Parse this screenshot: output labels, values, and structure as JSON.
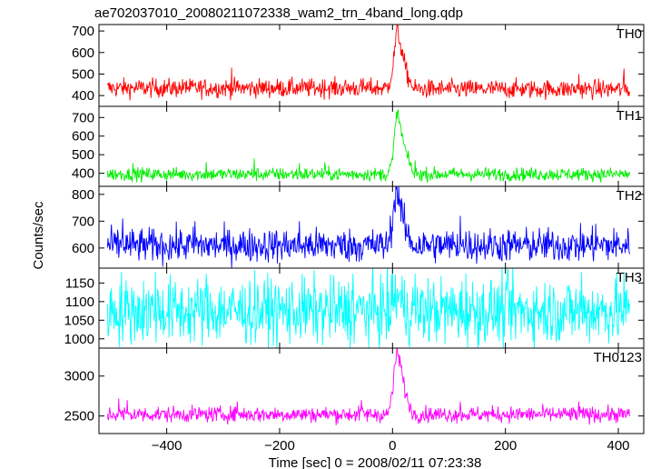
{
  "chart_data": {
    "type": "line",
    "title": "ae702037010_20080211072338_wam2_trn_4band_long.qdp",
    "xlabel": "Time [sec] 0 = 2008/02/11 07:23:38",
    "ylabel": "Counts/sec",
    "xlim": [
      -520,
      445
    ],
    "xticks": [
      -400,
      -200,
      0,
      200,
      400
    ],
    "x_range": [
      -505,
      420
    ],
    "x_step": 1,
    "burst_peak_x": 8,
    "panels": [
      {
        "name": "TH0",
        "color": "#ff0000",
        "ylim": [
          350,
          730
        ],
        "yticks": [
          400,
          500,
          600,
          700
        ],
        "baseline": 430,
        "noise": 22,
        "pre_burst_baseline": 435,
        "burst": [
          [
            -8,
            440
          ],
          [
            0,
            520
          ],
          [
            4,
            620
          ],
          [
            8,
            710
          ],
          [
            14,
            640
          ],
          [
            20,
            560
          ],
          [
            28,
            480
          ],
          [
            36,
            450
          ]
        ],
        "spikes": [
          [
            -120,
            475
          ],
          [
            -55,
            470
          ],
          [
            -365,
            470
          ],
          [
            -285,
            530
          ],
          [
            330,
            500
          ],
          [
            410,
            525
          ]
        ]
      },
      {
        "name": "TH1",
        "color": "#00ee00",
        "ylim": [
          330,
          760
        ],
        "yticks": [
          400,
          500,
          600,
          700
        ],
        "baseline": 395,
        "noise": 18,
        "pre_burst_baseline": 395,
        "burst": [
          [
            -8,
            400
          ],
          [
            0,
            470
          ],
          [
            4,
            620
          ],
          [
            8,
            740
          ],
          [
            14,
            650
          ],
          [
            20,
            560
          ],
          [
            28,
            470
          ],
          [
            36,
            420
          ]
        ],
        "spikes": [
          [
            -460,
            455
          ],
          [
            -330,
            460
          ],
          [
            -245,
            480
          ],
          [
            -165,
            455
          ],
          [
            -120,
            460
          ],
          [
            40,
            470
          ]
        ]
      },
      {
        "name": "TH2",
        "color": "#0000ff",
        "ylim": [
          525,
          830
        ],
        "yticks": [
          600,
          700,
          800
        ],
        "baseline": 610,
        "noise": 32,
        "pre_burst_baseline": 610,
        "burst": [
          [
            -8,
            615
          ],
          [
            0,
            700
          ],
          [
            4,
            790
          ],
          [
            8,
            820
          ],
          [
            14,
            760
          ],
          [
            20,
            690
          ],
          [
            28,
            640
          ],
          [
            36,
            620
          ]
        ],
        "spikes": [
          [
            -478,
            710
          ],
          [
            -350,
            700
          ],
          [
            -165,
            700
          ],
          [
            120,
            720
          ],
          [
            360,
            690
          ]
        ]
      },
      {
        "name": "TH3",
        "color": "#00ffff",
        "ylim": [
          975,
          1190
        ],
        "yticks": [
          1000,
          1050,
          1100,
          1150
        ],
        "baseline": 1075,
        "noise": 45,
        "pre_burst_baseline": 1075,
        "burst": [
          [
            0,
            1100
          ],
          [
            8,
            1120
          ],
          [
            20,
            1090
          ]
        ],
        "spikes": [
          [
            -480,
            1180
          ],
          [
            -420,
            1180
          ],
          [
            -330,
            1175
          ],
          [
            -70,
            1175
          ],
          [
            0,
            1185
          ],
          [
            40,
            1175
          ],
          [
            130,
            1175
          ],
          [
            205,
            1180
          ],
          [
            335,
            1180
          ],
          [
            410,
            1180
          ]
        ]
      },
      {
        "name": "TH0123",
        "color": "#ff00ff",
        "ylim": [
          2280,
          3350
        ],
        "yticks": [
          2500,
          3000
        ],
        "baseline": 2520,
        "noise": 50,
        "pre_burst_baseline": 2520,
        "burst": [
          [
            -8,
            2530
          ],
          [
            0,
            2800
          ],
          [
            4,
            3100
          ],
          [
            8,
            3320
          ],
          [
            14,
            3150
          ],
          [
            20,
            2900
          ],
          [
            28,
            2650
          ],
          [
            36,
            2560
          ]
        ],
        "spikes": [
          [
            -485,
            2720
          ],
          [
            -470,
            2700
          ],
          [
            -275,
            2680
          ],
          [
            -55,
            2700
          ],
          [
            120,
            2680
          ],
          [
            330,
            2680
          ]
        ]
      }
    ],
    "grid": false,
    "legend": "none"
  }
}
